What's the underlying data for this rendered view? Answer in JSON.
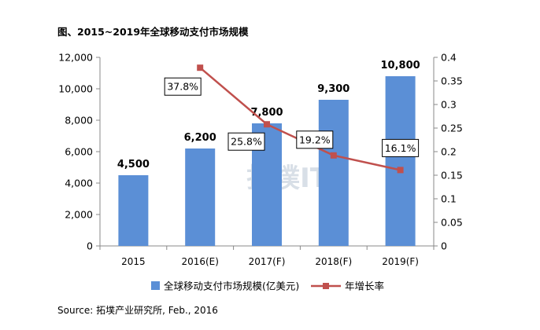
{
  "title": "图、2015~2019年全球移动支付市场规模",
  "source": "Source: 拓墣产业研究所, Feb., 2016",
  "watermark": "拓墣IT",
  "chart_data": {
    "type": "bar",
    "categories": [
      "2015",
      "2016(E)",
      "2017(F)",
      "2018(F)",
      "2019(F)"
    ],
    "series": [
      {
        "name": "全球移动支付市场规模(亿美元)",
        "type": "bar",
        "axis": "left",
        "values": [
          4500,
          6200,
          7800,
          9300,
          10800
        ],
        "labels": [
          "4,500",
          "6,200",
          "7,800",
          "9,300",
          "10,800"
        ],
        "color": "#5b8fd6"
      },
      {
        "name": "年增长率",
        "type": "line",
        "axis": "right",
        "values": [
          null,
          0.378,
          0.258,
          0.192,
          0.161
        ],
        "labels": [
          null,
          "37.8%",
          "25.8%",
          "19.2%",
          "16.1%"
        ],
        "color": "#c0504d"
      }
    ],
    "y_left": {
      "min": 0,
      "max": 12000,
      "ticks": [
        0,
        2000,
        4000,
        6000,
        8000,
        10000,
        12000
      ],
      "tick_labels": [
        "0",
        "2,000",
        "4,000",
        "6,000",
        "8,000",
        "10,000",
        "12,000"
      ]
    },
    "y_right": {
      "min": 0,
      "max": 0.4,
      "ticks": [
        0,
        0.05,
        0.1,
        0.15,
        0.2,
        0.25,
        0.3,
        0.35,
        0.4
      ],
      "tick_labels": [
        "0",
        "0.05",
        "0.1",
        "0.15",
        "0.2",
        "0.25",
        "0.3",
        "0.35",
        "0.4"
      ]
    },
    "grid": false,
    "legend": "bottom"
  }
}
